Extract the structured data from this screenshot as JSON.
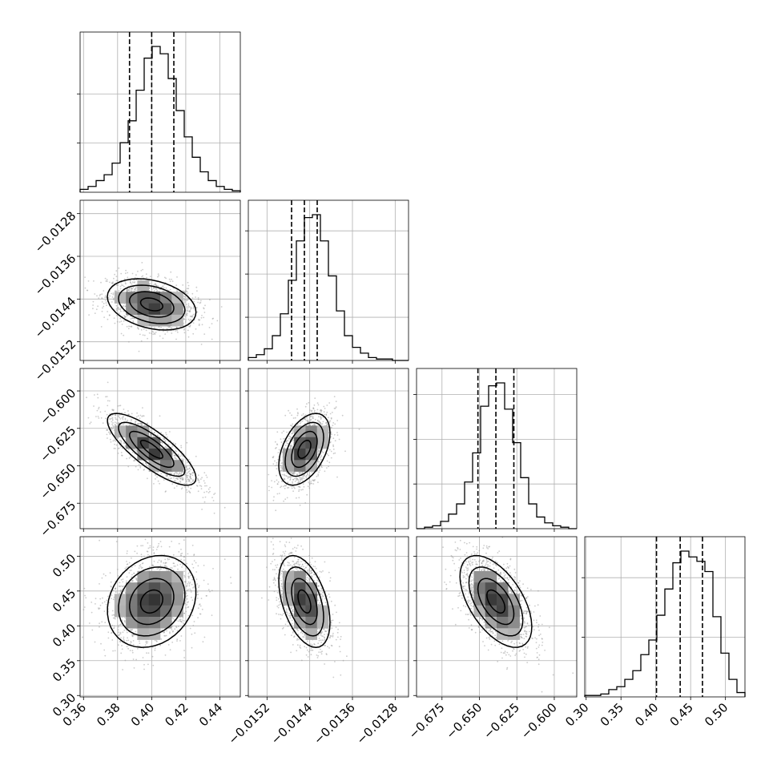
{
  "chart_data": {
    "type": "corner",
    "title": "",
    "parameters": [
      {
        "range": [
          0.358,
          0.452
        ],
        "quantiles": [
          0.387,
          0.4,
          0.413
        ],
        "ticks": [
          0.36,
          0.38,
          0.4,
          0.42,
          0.44
        ],
        "tick_labels": [
          "0.36",
          "0.38",
          "0.40",
          "0.42",
          "0.44"
        ],
        "hist": [
          0.02,
          0.04,
          0.08,
          0.12,
          0.2,
          0.34,
          0.49,
          0.7,
          0.92,
          1.0,
          0.95,
          0.78,
          0.56,
          0.38,
          0.24,
          0.14,
          0.08,
          0.04,
          0.02,
          0.01
        ]
      },
      {
        "range": [
          -0.01555,
          -0.01255
        ],
        "quantiles": [
          -0.01474,
          -0.0145,
          -0.01426
        ],
        "ticks": [
          -0.0152,
          -0.0144,
          -0.0136,
          -0.0128
        ],
        "tick_labels": [
          "−0.0152",
          "−0.0144",
          "−0.0136",
          "−0.0128"
        ],
        "hist": [
          0.02,
          0.04,
          0.08,
          0.17,
          0.32,
          0.55,
          0.82,
          0.98,
          1.0,
          0.82,
          0.58,
          0.34,
          0.17,
          0.09,
          0.05,
          0.02,
          0.01,
          0.01,
          0.0,
          0.0
        ]
      },
      {
        "range": [
          -0.692,
          -0.585
        ],
        "quantiles": [
          -0.651,
          -0.639,
          -0.627
        ],
        "ticks": [
          -0.675,
          -0.65,
          -0.625,
          -0.6
        ],
        "tick_labels": [
          "−0.675",
          "−0.650",
          "−0.625",
          "−0.600"
        ],
        "hist": [
          0.0,
          0.01,
          0.02,
          0.05,
          0.1,
          0.17,
          0.32,
          0.52,
          0.84,
          0.98,
          1.0,
          0.82,
          0.59,
          0.35,
          0.17,
          0.08,
          0.04,
          0.02,
          0.01,
          0.0
        ]
      },
      {
        "range": [
          0.298,
          0.528
        ],
        "quantiles": [
          0.401,
          0.435,
          0.467
        ],
        "ticks": [
          0.3,
          0.35,
          0.4,
          0.45,
          0.5
        ],
        "tick_labels": [
          "0.30",
          "0.35",
          "0.40",
          "0.45",
          "0.50"
        ],
        "hist": [
          0.01,
          0.01,
          0.02,
          0.05,
          0.07,
          0.12,
          0.18,
          0.29,
          0.39,
          0.56,
          0.74,
          0.92,
          1.0,
          0.96,
          0.93,
          0.86,
          0.55,
          0.3,
          0.12,
          0.03
        ]
      }
    ],
    "value_ticks": {
      "0": [
        0.33,
        0.66
      ],
      "1": [
        0.29,
        0.58,
        0.87
      ],
      "2": [
        0.3,
        0.6,
        0.9
      ],
      "3": [
        0.4,
        0.8
      ]
    },
    "correlations": {
      "1-0": -0.3,
      "2-0": -0.8,
      "2-1": 0.45,
      "3-0": 0.2,
      "3-1": -0.45,
      "3-2": -0.55
    },
    "contour_levels": [
      0.5,
      1.0,
      1.5,
      2.0
    ],
    "colors": {
      "line": "#000000",
      "grid": "#b0b0b0",
      "points": "#9a9a9a"
    },
    "grid": true,
    "legend": "none",
    "xlabel": "",
    "ylabel": ""
  }
}
